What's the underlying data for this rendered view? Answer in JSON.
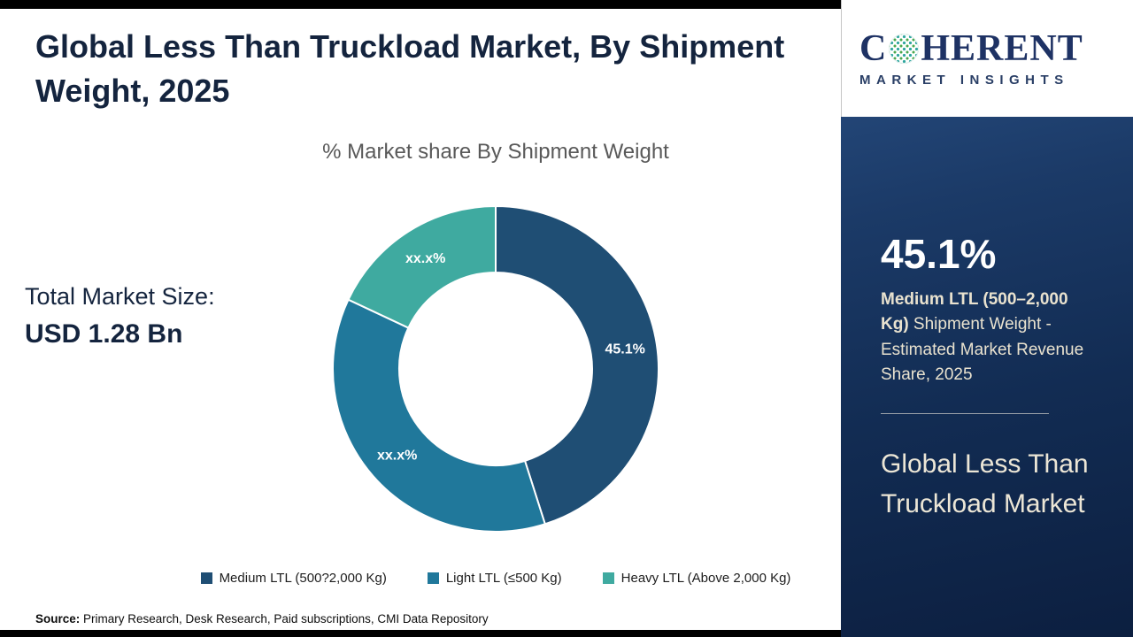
{
  "page": {
    "title": "Global Less Than Truckload Market, By Shipment Weight, 2025",
    "total_market_label": "Total Market Size:",
    "total_market_value": "USD 1.28 Bn",
    "source_label": "Source:",
    "source_text": " Primary Research, Desk Research, Paid subscriptions, CMI Data Repository"
  },
  "logo": {
    "text_before_globe": "C",
    "text_after_globe": "HERENT",
    "tagline": "MARKET INSIGHTS"
  },
  "side_panel": {
    "stat_value": "45.1%",
    "stat_desc_bold": "Medium LTL (500–2,000 Kg)",
    "stat_desc_rest": " Shipment Weight - Estimated Market Revenue Share, 2025",
    "market_name": "Global Less Than Truckload Market"
  },
  "chart_data": {
    "type": "pie",
    "donut": true,
    "title": "% Market share By Shipment Weight",
    "legend_position": "bottom",
    "segments": [
      {
        "label": "Medium LTL (500?2,000 Kg)",
        "value_pct": 45.1,
        "display_label": "45.1%",
        "color": "#1f4e74"
      },
      {
        "label": "Light LTL (≤500 Kg)",
        "value_pct": 36.9,
        "display_label": "xx.x%",
        "color": "#20789b"
      },
      {
        "label": "Heavy LTL (Above 2,000 Kg)",
        "value_pct": 18.0,
        "display_label": "xx.x%",
        "color": "#3faaa0"
      }
    ]
  },
  "colors": {
    "accent_navy": "#1f4e74",
    "accent_teal": "#20789b",
    "accent_green_teal": "#3faaa0",
    "panel_dark_blue": "#16305c",
    "title_text": "#14243e",
    "panel_cream_text": "#e9e2cf"
  }
}
